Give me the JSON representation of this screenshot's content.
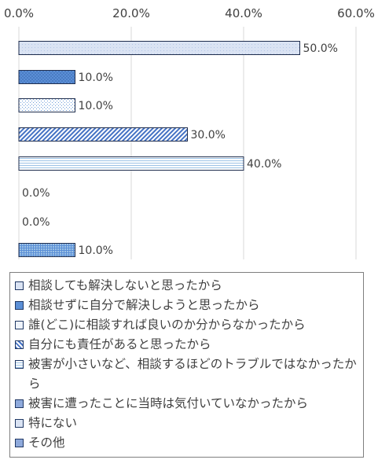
{
  "chart_data": {
    "type": "bar",
    "orientation": "horizontal",
    "xlim": [
      0,
      60
    ],
    "x_ticks": [
      "0.0%",
      "20.0%",
      "40.0%",
      "60.0%"
    ],
    "grid": true,
    "legend_position": "bottom",
    "series": [
      {
        "name": "相談しても解決しないと思ったから",
        "value": 50.0,
        "label": "50.0%",
        "pattern": "light",
        "color": "#dae3f3"
      },
      {
        "name": "相談せずに自分で解決しようと思ったから",
        "value": 10.0,
        "label": "10.0%",
        "pattern": "solid-medium",
        "color": "#5b8fd6"
      },
      {
        "name": "誰(どこ)に相談すれば良いのか分からなかったから",
        "value": 10.0,
        "label": "10.0%",
        "pattern": "dots",
        "color": "#9dc3e6"
      },
      {
        "name": "自分にも責任があると思ったから",
        "value": 30.0,
        "label": "30.0%",
        "pattern": "diagonal",
        "color": "#4472c4"
      },
      {
        "name": "被害が小さいなど、相談するほどのトラブルではなかったから",
        "value": 40.0,
        "label": "40.0%",
        "pattern": "hlines",
        "color": "#9dc3e6"
      },
      {
        "name": "被害に遭ったことに当時は気付いていなかったから",
        "value": 0.0,
        "label": "0.0%",
        "pattern": "fine",
        "color": "#8faadc"
      },
      {
        "name": "特にない",
        "value": 0.0,
        "label": "0.0%",
        "pattern": "light",
        "color": "#b4c7e7"
      },
      {
        "name": "その他",
        "value": 10.0,
        "label": "10.0%",
        "pattern": "grid",
        "color": "#5b8fd6"
      }
    ]
  }
}
